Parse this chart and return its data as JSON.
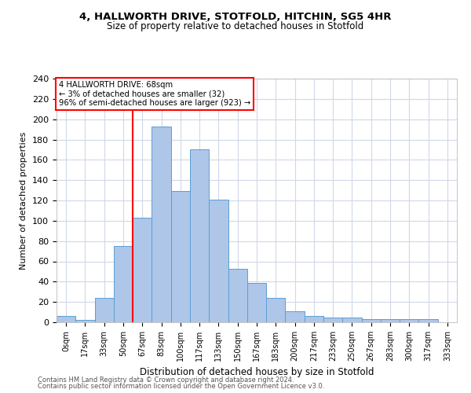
{
  "title_line1": "4, HALLWORTH DRIVE, STOTFOLD, HITCHIN, SG5 4HR",
  "title_line2": "Size of property relative to detached houses in Stotfold",
  "xlabel": "Distribution of detached houses by size in Stotfold",
  "ylabel": "Number of detached properties",
  "bar_labels": [
    "0sqm",
    "17sqm",
    "33sqm",
    "50sqm",
    "67sqm",
    "83sqm",
    "100sqm",
    "117sqm",
    "133sqm",
    "150sqm",
    "167sqm",
    "183sqm",
    "200sqm",
    "217sqm",
    "233sqm",
    "250sqm",
    "267sqm",
    "283sqm",
    "300sqm",
    "317sqm",
    "333sqm"
  ],
  "bar_values": [
    6,
    2,
    24,
    75,
    103,
    193,
    129,
    170,
    121,
    53,
    39,
    24,
    11,
    6,
    5,
    5,
    3,
    3,
    3,
    3,
    0
  ],
  "bar_color": "#aec6e8",
  "bar_edgecolor": "#5a9fd4",
  "red_line_index": 4,
  "annotation_title": "4 HALLWORTH DRIVE: 68sqm",
  "annotation_line1": "← 3% of detached houses are smaller (32)",
  "annotation_line2": "96% of semi-detached houses are larger (923) →",
  "ylim": [
    0,
    240
  ],
  "yticks": [
    0,
    20,
    40,
    60,
    80,
    100,
    120,
    140,
    160,
    180,
    200,
    220,
    240
  ],
  "footer1": "Contains HM Land Registry data © Crown copyright and database right 2024.",
  "footer2": "Contains public sector information licensed under the Open Government Licence v3.0.",
  "background_color": "#ffffff",
  "grid_color": "#d0d8e8"
}
